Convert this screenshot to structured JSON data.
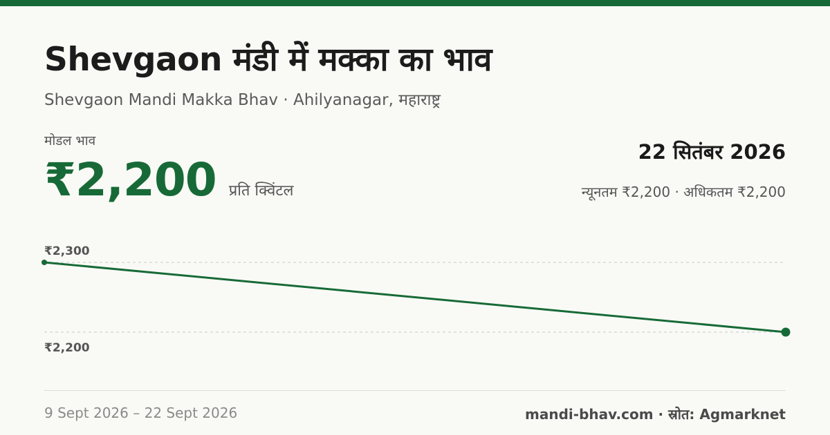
{
  "header": {
    "title": "Shevgaon मंडी में मक्का का भाव",
    "subtitle": "Shevgaon Mandi Makka Bhav · Ahilyanagar, महाराष्ट्र"
  },
  "price": {
    "label": "मोडल भाव",
    "value": "₹2,200",
    "unit": "प्रति क्विंटल"
  },
  "date": "22 सितंबर 2026",
  "range_text": "न्यूनतम ₹2,200 · अधिकतम ₹2,200",
  "footer": {
    "date_range": "9 Sept 2026 – 22 Sept 2026",
    "source": "mandi-bhav.com · स्रोत: Agmarknet"
  },
  "colors": {
    "accent": "#176a37",
    "background": "#f9faf6"
  },
  "chart_data": {
    "type": "line",
    "x": [
      "9 Sept 2026",
      "22 Sept 2026"
    ],
    "series": [
      {
        "values": [
          2300,
          2200
        ]
      }
    ],
    "y_ticks": [
      2300,
      2200
    ],
    "y_tick_labels": [
      "₹2,300",
      "₹2,200"
    ],
    "ylim": [
      2200,
      2300
    ],
    "grid": true
  }
}
